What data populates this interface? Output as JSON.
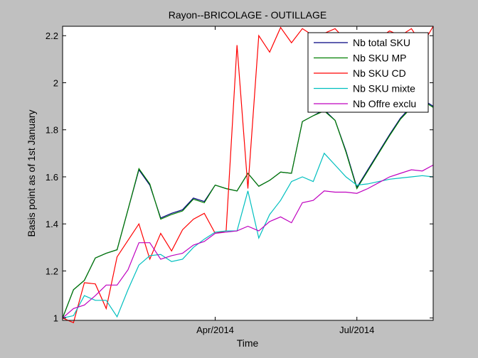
{
  "chart_data": {
    "type": "line",
    "title": "Rayon--BRICOLAGE - OUTILLAGE",
    "xlabel": "Time",
    "ylabel": "Basis point as of 1st January",
    "x_tick_labels": [
      "Apr/2014",
      "Jul/2014"
    ],
    "y_tick_labels": [
      "1",
      "1.2",
      "1.4",
      "1.6",
      "1.8",
      "2",
      "2.2"
    ],
    "ylim": [
      0.99,
      2.24
    ],
    "grid": false,
    "legend_position": "top-right",
    "series": [
      {
        "name": "Nb total SKU",
        "color": "#00007f",
        "x": [
          0,
          1,
          2,
          3,
          4,
          5,
          6,
          7,
          8,
          9,
          10,
          11,
          12,
          13,
          14,
          15,
          16,
          17,
          18,
          19,
          20,
          21,
          22,
          23,
          24,
          25,
          26,
          27,
          28,
          29,
          30,
          31,
          32,
          33,
          34
        ],
        "y": [
          1.0,
          1.12,
          1.16,
          1.255,
          1.275,
          1.29,
          1.46,
          1.63,
          1.565,
          1.425,
          1.445,
          1.46,
          1.51,
          1.495,
          1.565,
          1.55,
          1.54,
          1.615,
          1.56,
          1.585,
          1.62,
          1.615,
          1.835,
          1.86,
          1.885,
          1.84,
          1.71,
          1.555,
          1.63,
          1.705,
          1.78,
          1.85,
          1.9,
          1.93,
          1.9
        ]
      },
      {
        "name": "Nb SKU MP",
        "color": "#007f00",
        "x": [
          0,
          1,
          2,
          3,
          4,
          5,
          6,
          7,
          8,
          9,
          10,
          11,
          12,
          13,
          14,
          15,
          16,
          17,
          18,
          19,
          20,
          21,
          22,
          23,
          24,
          25,
          26,
          27,
          28,
          29,
          30,
          31,
          32,
          33,
          34
        ],
        "y": [
          1.0,
          1.12,
          1.16,
          1.255,
          1.275,
          1.29,
          1.46,
          1.635,
          1.57,
          1.42,
          1.44,
          1.455,
          1.505,
          1.49,
          1.565,
          1.55,
          1.54,
          1.615,
          1.56,
          1.585,
          1.62,
          1.615,
          1.835,
          1.86,
          1.88,
          1.84,
          1.705,
          1.55,
          1.625,
          1.7,
          1.775,
          1.845,
          1.895,
          1.925,
          1.895
        ]
      },
      {
        "name": "Nb SKU CD",
        "color": "#ff0000",
        "x": [
          0,
          1,
          2,
          3,
          4,
          5,
          6,
          7,
          8,
          9,
          10,
          11,
          12,
          13,
          14,
          15,
          16,
          17,
          18,
          19,
          20,
          21,
          22,
          23,
          24,
          25,
          26,
          27,
          28,
          29,
          30,
          31,
          32,
          33,
          34
        ],
        "y": [
          1.0,
          0.98,
          1.15,
          1.145,
          1.04,
          1.26,
          1.33,
          1.4,
          1.25,
          1.36,
          1.285,
          1.375,
          1.42,
          1.445,
          1.36,
          1.37,
          2.16,
          1.55,
          2.2,
          2.13,
          2.235,
          2.17,
          2.23,
          2.2,
          2.21,
          2.23,
          2.18,
          2.2,
          2.21,
          2.19,
          2.22,
          2.2,
          2.23,
          2.16,
          2.24
        ]
      },
      {
        "name": "Nb SKU mixte",
        "color": "#00bfbf",
        "x": [
          0,
          1,
          2,
          3,
          4,
          5,
          6,
          7,
          8,
          9,
          10,
          11,
          12,
          13,
          14,
          15,
          16,
          17,
          18,
          19,
          20,
          21,
          22,
          23,
          24,
          25,
          26,
          27,
          28,
          29,
          30,
          31,
          32,
          33,
          34
        ],
        "y": [
          1.0,
          1.01,
          1.095,
          1.075,
          1.075,
          1.005,
          1.12,
          1.225,
          1.265,
          1.27,
          1.24,
          1.25,
          1.3,
          1.335,
          1.365,
          1.37,
          1.37,
          1.54,
          1.34,
          1.44,
          1.5,
          1.58,
          1.6,
          1.58,
          1.7,
          1.65,
          1.6,
          1.565,
          1.57,
          1.58,
          1.59,
          1.595,
          1.6,
          1.605,
          1.6
        ]
      },
      {
        "name": "Nb Offre exclu",
        "color": "#bf00bf",
        "x": [
          0,
          1,
          2,
          3,
          4,
          5,
          6,
          7,
          8,
          9,
          10,
          11,
          12,
          13,
          14,
          15,
          16,
          17,
          18,
          19,
          20,
          21,
          22,
          23,
          24,
          25,
          26,
          27,
          28,
          29,
          30,
          31,
          32,
          33,
          34
        ],
        "y": [
          1.0,
          1.04,
          1.055,
          1.095,
          1.14,
          1.14,
          1.205,
          1.32,
          1.32,
          1.25,
          1.265,
          1.275,
          1.31,
          1.325,
          1.36,
          1.365,
          1.37,
          1.39,
          1.37,
          1.41,
          1.43,
          1.405,
          1.49,
          1.5,
          1.54,
          1.535,
          1.535,
          1.53,
          1.55,
          1.575,
          1.6,
          1.615,
          1.63,
          1.625,
          1.65
        ]
      }
    ]
  }
}
